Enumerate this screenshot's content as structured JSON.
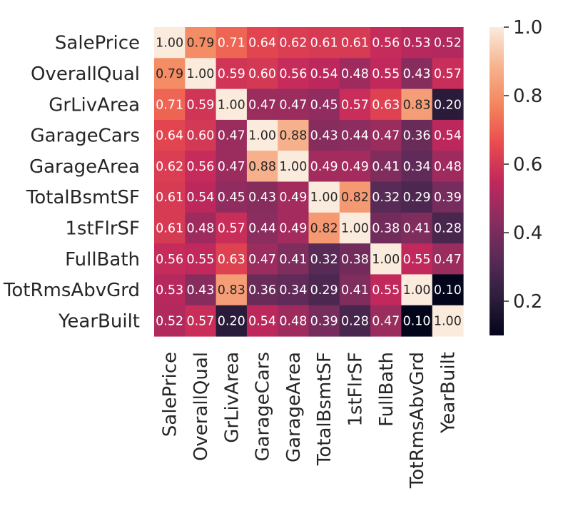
{
  "chart_data": {
    "type": "heatmap",
    "title": "",
    "xlabel": "",
    "ylabel": "",
    "row_labels": [
      "SalePrice",
      "OverallQual",
      "GrLivArea",
      "GarageCars",
      "GarageArea",
      "TotalBsmtSF",
      "1stFlrSF",
      "FullBath",
      "TotRmsAbvGrd",
      "YearBuilt"
    ],
    "col_labels": [
      "SalePrice",
      "OverallQual",
      "GrLivArea",
      "GarageCars",
      "GarageArea",
      "TotalBsmtSF",
      "1stFlrSF",
      "FullBath",
      "TotRmsAbvGrd",
      "YearBuilt"
    ],
    "values": [
      [
        1.0,
        0.79,
        0.71,
        0.64,
        0.62,
        0.61,
        0.61,
        0.56,
        0.53,
        0.52
      ],
      [
        0.79,
        1.0,
        0.59,
        0.6,
        0.56,
        0.54,
        0.48,
        0.55,
        0.43,
        0.57
      ],
      [
        0.71,
        0.59,
        1.0,
        0.47,
        0.47,
        0.45,
        0.57,
        0.63,
        0.83,
        0.2
      ],
      [
        0.64,
        0.6,
        0.47,
        1.0,
        0.88,
        0.43,
        0.44,
        0.47,
        0.36,
        0.54
      ],
      [
        0.62,
        0.56,
        0.47,
        0.88,
        1.0,
        0.49,
        0.49,
        0.41,
        0.34,
        0.48
      ],
      [
        0.61,
        0.54,
        0.45,
        0.43,
        0.49,
        1.0,
        0.82,
        0.32,
        0.29,
        0.39
      ],
      [
        0.61,
        0.48,
        0.57,
        0.44,
        0.49,
        0.82,
        1.0,
        0.38,
        0.41,
        0.28
      ],
      [
        0.56,
        0.55,
        0.63,
        0.47,
        0.41,
        0.32,
        0.38,
        1.0,
        0.55,
        0.47
      ],
      [
        0.53,
        0.43,
        0.83,
        0.36,
        0.34,
        0.29,
        0.41,
        0.55,
        1.0,
        0.1
      ],
      [
        0.52,
        0.57,
        0.2,
        0.54,
        0.48,
        0.39,
        0.28,
        0.47,
        0.1,
        1.0
      ]
    ],
    "value_format": "2 decimals",
    "colormap": "rocket",
    "color_stops": [
      "#03051a",
      "#2e1e3d",
      "#5a2b57",
      "#8a2d5f",
      "#c1285c",
      "#ea4c4d",
      "#f4875e",
      "#f6b48f",
      "#faebdd"
    ],
    "vmin": 0.1,
    "vmax": 1.0,
    "colorbar_ticks": [
      "0.2",
      "0.4",
      "0.6",
      "0.8",
      "1.0"
    ],
    "colorbar_tick_values": [
      0.2,
      0.4,
      0.6,
      0.8,
      1.0
    ]
  }
}
